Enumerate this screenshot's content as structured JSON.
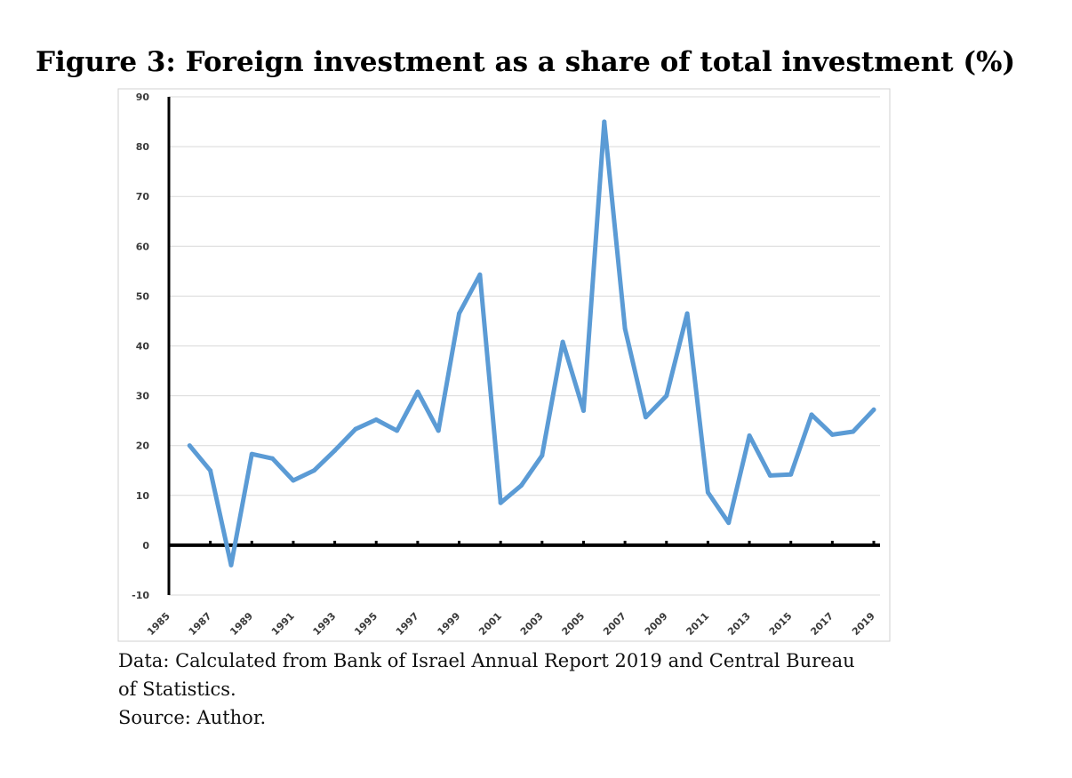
{
  "title": "Figure 3: Foreign investment as a share of total investment (%)",
  "caption": {
    "line1": "Data: Calculated from Bank of Israel Annual Report 2019 and Central Bureau",
    "line2": "of Statistics.",
    "line3": "Source: Author."
  },
  "colors": {
    "series": "#5b9bd5",
    "axis": "#000000",
    "grid": "#d9d9d9",
    "frame": "#d0d0d0"
  },
  "chart_data": {
    "type": "line",
    "title": "Figure 3: Foreign investment as a share of total investment (%)",
    "xlabel": "",
    "ylabel": "",
    "ylim": [
      -10,
      90
    ],
    "yticks": [
      -10,
      0,
      10,
      20,
      30,
      40,
      50,
      60,
      70,
      80,
      90
    ],
    "xticks": [
      "1985",
      "1987",
      "1989",
      "1991",
      "1993",
      "1995",
      "1997",
      "1999",
      "2001",
      "2003",
      "2005",
      "2007",
      "2009",
      "2011",
      "2013",
      "2015",
      "2017",
      "2019"
    ],
    "grid": true,
    "series": [
      {
        "name": "Foreign investment share (%)",
        "x": [
          1986,
          1987,
          1988,
          1989,
          1990,
          1991,
          1992,
          1993,
          1994,
          1995,
          1996,
          1997,
          1998,
          1999,
          2000,
          2001,
          2002,
          2003,
          2004,
          2005,
          2006,
          2007,
          2008,
          2009,
          2010,
          2011,
          2012,
          2013,
          2014,
          2015,
          2016,
          2017,
          2018,
          2019
        ],
        "values": [
          20,
          15,
          -4,
          18.3,
          17.4,
          13,
          15,
          19,
          23.3,
          25.2,
          23,
          30.8,
          23,
          46.5,
          54.3,
          8.5,
          12,
          18,
          40.8,
          27,
          85,
          43.5,
          25.7,
          30,
          46.5,
          10.6,
          4.5,
          22,
          14,
          14.2,
          26.2,
          22.2,
          22.8,
          27.2
        ]
      }
    ]
  }
}
